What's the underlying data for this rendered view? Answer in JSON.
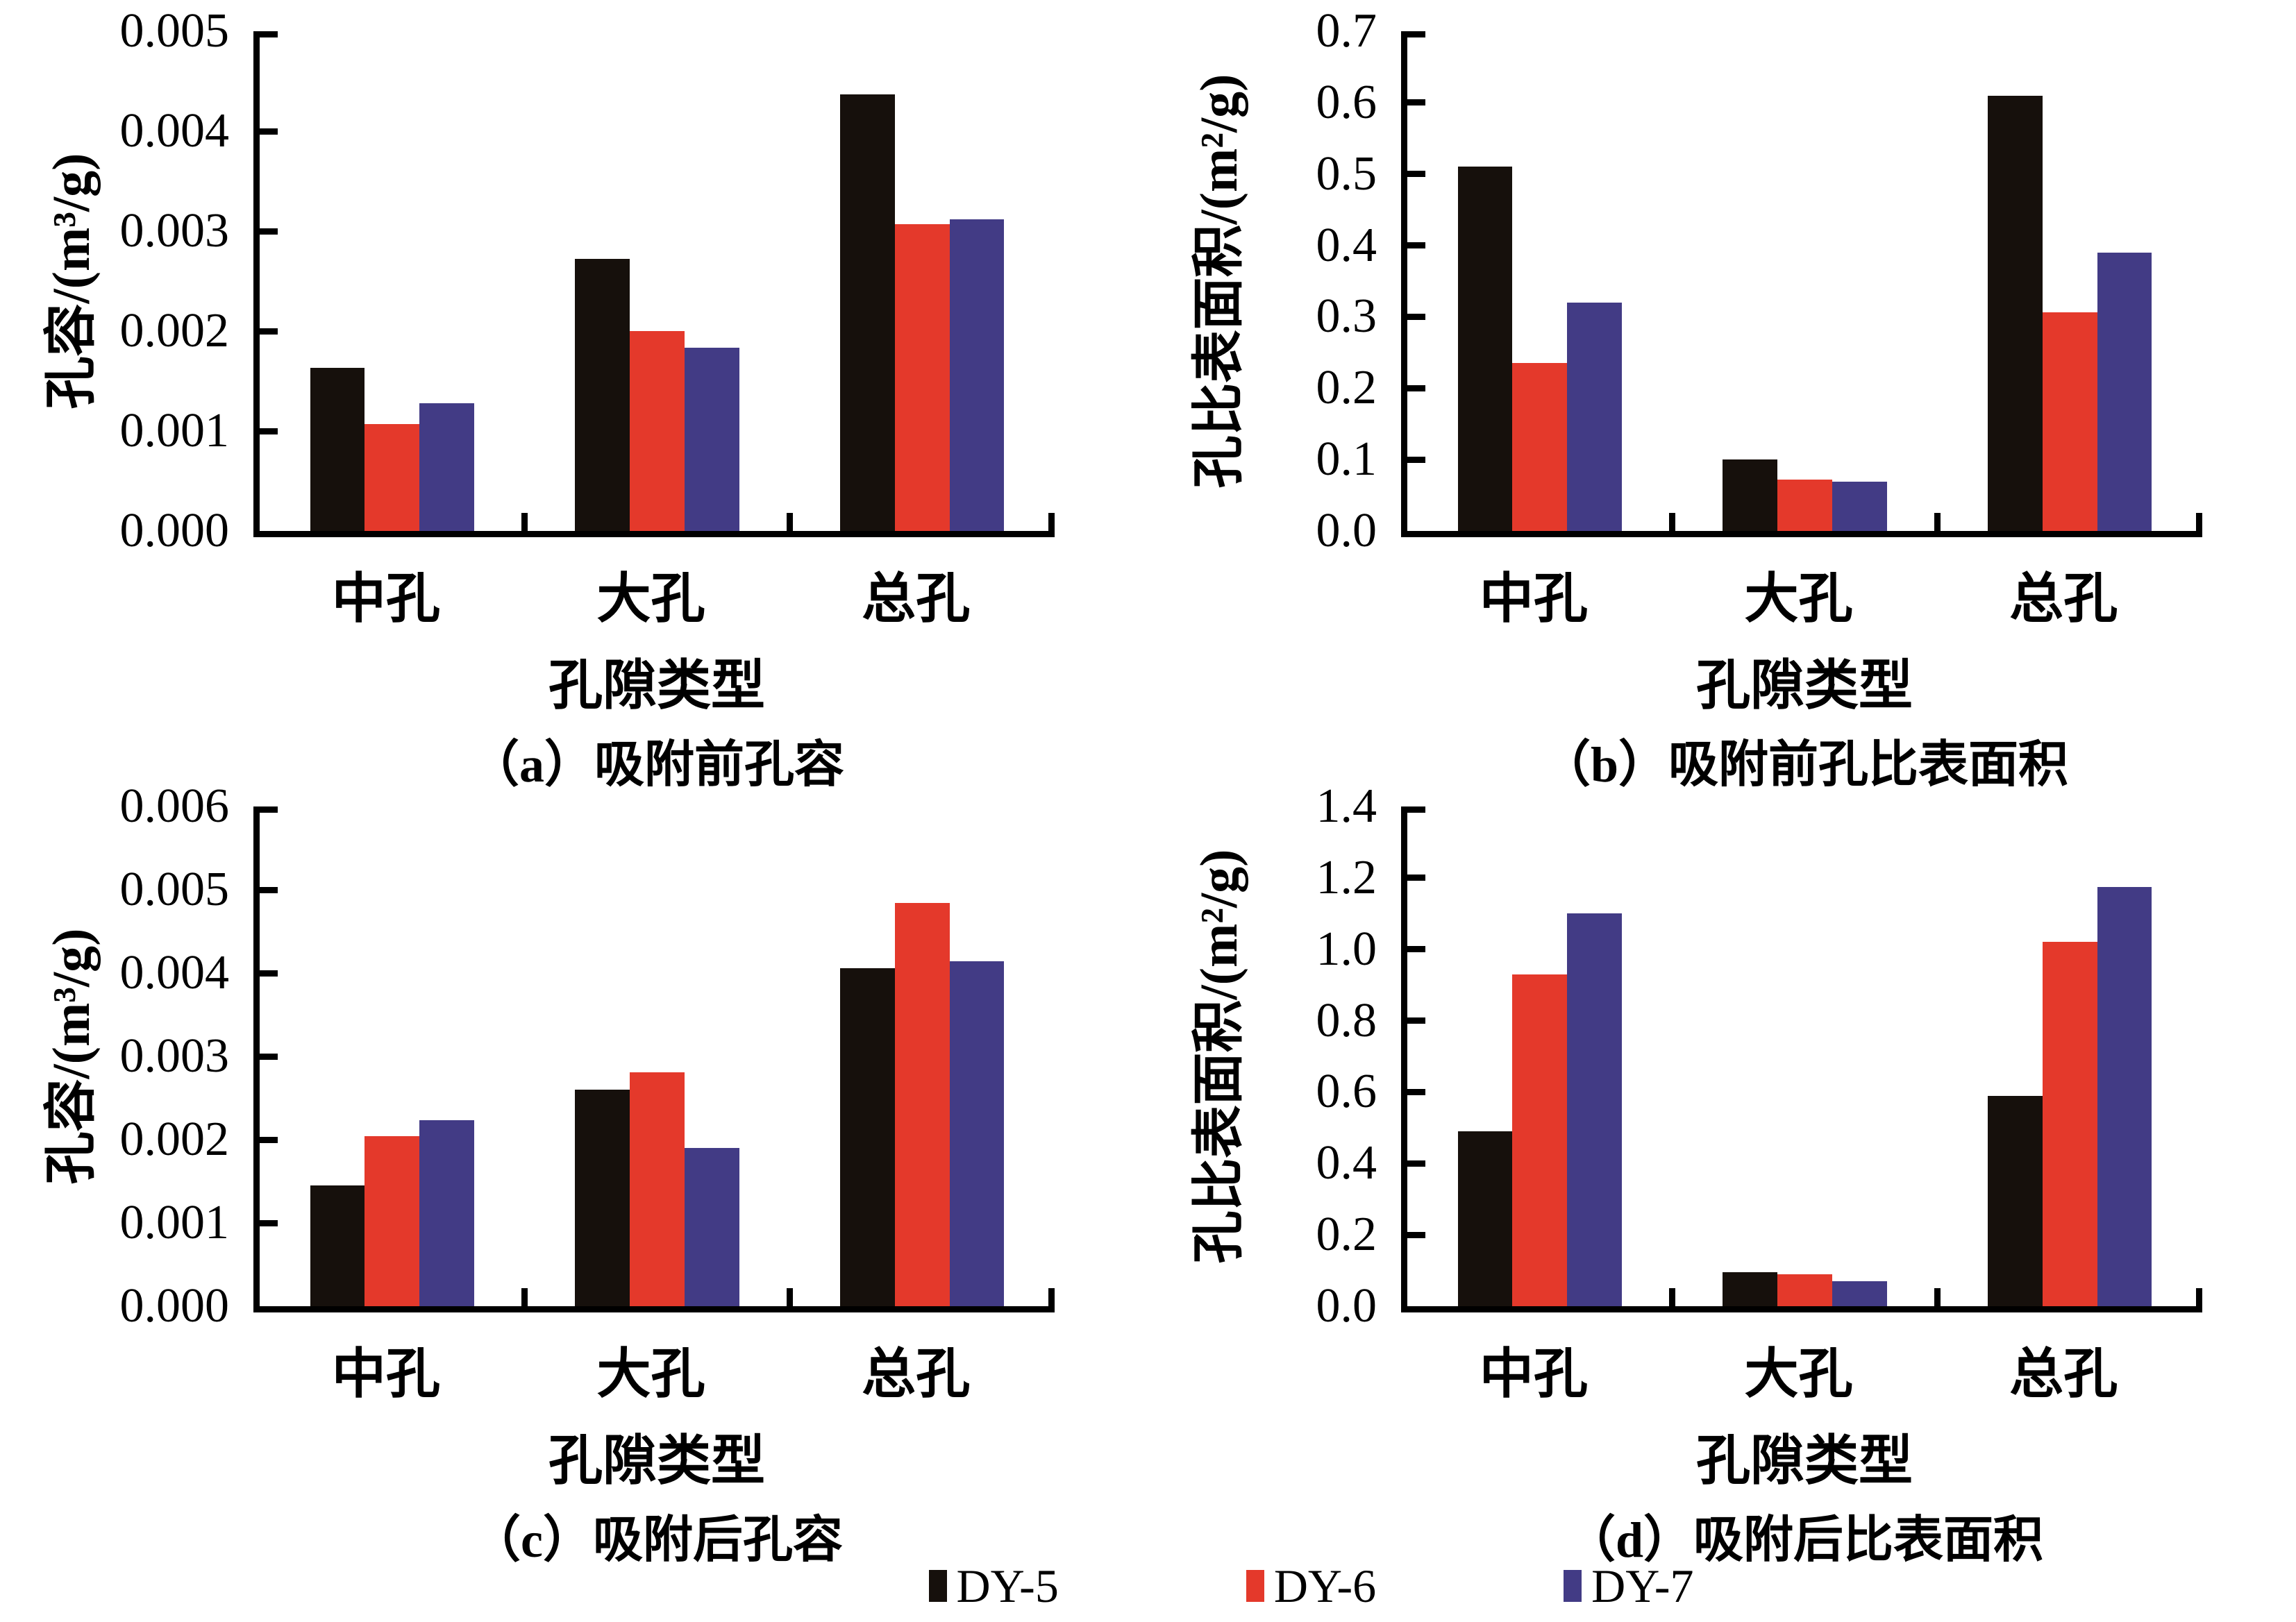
{
  "figure": {
    "background": "#ffffff",
    "axis_color": "#000000",
    "series_colors": {
      "DY-5": "#16100c",
      "DY-6": "#e4392b",
      "DY-7": "#423b85"
    }
  },
  "legend": {
    "position": "bottom-center",
    "items": [
      {
        "label": "DY-5",
        "color": "#16100c"
      },
      {
        "label": "DY-6",
        "color": "#e4392b"
      },
      {
        "label": "DY-7",
        "color": "#423b85"
      }
    ]
  },
  "chart_data": [
    {
      "id": "a",
      "type": "bar",
      "caption": "（a）吸附前孔容",
      "xlabel": "孔隙类型",
      "ylabel": "孔容/(m³/g)",
      "categories": [
        "中孔",
        "大孔",
        "总孔"
      ],
      "series": [
        {
          "name": "DY-5",
          "values": [
            0.00163,
            0.00272,
            0.00437
          ]
        },
        {
          "name": "DY-6",
          "values": [
            0.00107,
            0.002,
            0.00307
          ]
        },
        {
          "name": "DY-7",
          "values": [
            0.00128,
            0.00183,
            0.00312
          ]
        }
      ],
      "ylim": [
        0,
        0.005
      ],
      "ytick_step": 0.001,
      "ytick_decimals": 3,
      "grid": false
    },
    {
      "id": "b",
      "type": "bar",
      "caption": "（b）吸附前孔比表面积",
      "xlabel": "孔隙类型",
      "ylabel": "孔比表面积/(m²/g)",
      "categories": [
        "中孔",
        "大孔",
        "总孔"
      ],
      "series": [
        {
          "name": "DY-5",
          "values": [
            0.51,
            0.1,
            0.61
          ]
        },
        {
          "name": "DY-6",
          "values": [
            0.235,
            0.072,
            0.306
          ]
        },
        {
          "name": "DY-7",
          "values": [
            0.32,
            0.069,
            0.39
          ]
        }
      ],
      "ylim": [
        0,
        0.7
      ],
      "ytick_step": 0.1,
      "ytick_decimals": 1,
      "grid": false
    },
    {
      "id": "c",
      "type": "bar",
      "caption": "（c）吸附后孔容",
      "xlabel": "孔隙类型",
      "ylabel": "孔容/(m³/g)",
      "categories": [
        "中孔",
        "大孔",
        "总孔"
      ],
      "series": [
        {
          "name": "DY-5",
          "values": [
            0.00145,
            0.0026,
            0.00406
          ]
        },
        {
          "name": "DY-6",
          "values": [
            0.00204,
            0.00281,
            0.00484
          ]
        },
        {
          "name": "DY-7",
          "values": [
            0.00223,
            0.0019,
            0.00414
          ]
        }
      ],
      "ylim": [
        0,
        0.006
      ],
      "ytick_step": 0.001,
      "ytick_decimals": 3,
      "grid": false
    },
    {
      "id": "d",
      "type": "bar",
      "caption": "（d）吸附后比表面积",
      "xlabel": "孔隙类型",
      "ylabel": "孔比表面积/(m²/g)",
      "categories": [
        "中孔",
        "大孔",
        "总孔"
      ],
      "series": [
        {
          "name": "DY-5",
          "values": [
            0.49,
            0.095,
            0.59
          ]
        },
        {
          "name": "DY-6",
          "values": [
            0.93,
            0.09,
            1.02
          ]
        },
        {
          "name": "DY-7",
          "values": [
            1.1,
            0.07,
            1.175
          ]
        }
      ],
      "ylim": [
        0,
        1.4
      ],
      "ytick_step": 0.2,
      "ytick_decimals": 1,
      "grid": false
    }
  ]
}
